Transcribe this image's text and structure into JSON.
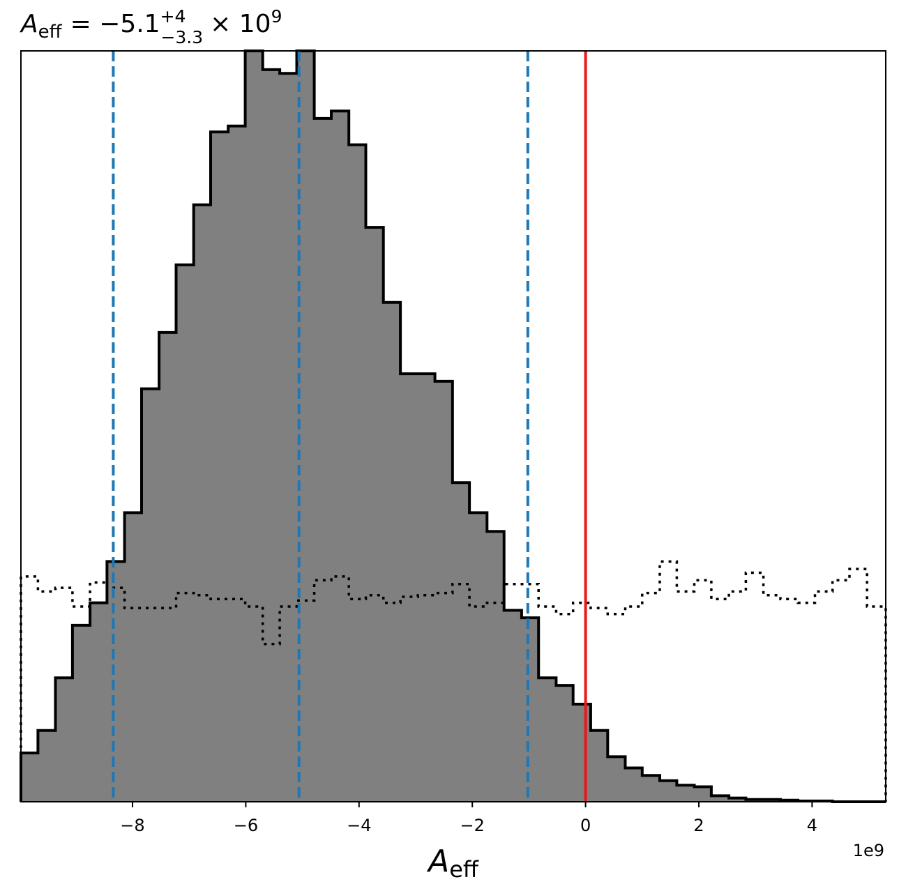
{
  "chart_data": {
    "type": "histogram",
    "title": {
      "symbol": "A",
      "symbol_sub": "eff",
      "value": "= −5.1",
      "sup": "+4",
      "sub": "−3.3",
      "times": "× 10",
      "exp": "9"
    },
    "xlabel": {
      "symbol": "A",
      "sub": "eff"
    },
    "x_offset_label": "1e9",
    "xlim": [
      -9.97,
      5.3
    ],
    "ylim": [
      0,
      1.0
    ],
    "x_ticks": [
      -8,
      -6,
      -4,
      -2,
      0,
      2,
      4
    ],
    "x_tick_labels": [
      "−8",
      "−6",
      "−4",
      "−2",
      "0",
      "2",
      "4"
    ],
    "posterior": {
      "bin_edges": [
        -9.97,
        -9.67,
        -9.36,
        -9.06,
        -8.75,
        -8.45,
        -8.14,
        -7.84,
        -7.53,
        -7.23,
        -6.92,
        -6.62,
        -6.31,
        -6.01,
        -5.7,
        -5.4,
        -5.1,
        -4.79,
        -4.49,
        -4.18,
        -3.88,
        -3.57,
        -3.27,
        -2.96,
        -2.66,
        -2.35,
        -2.05,
        -1.74,
        -1.44,
        -1.13,
        -0.83,
        -0.52,
        -0.22,
        0.09,
        0.39,
        0.7,
        1.0,
        1.31,
        1.61,
        1.92,
        2.22,
        2.53,
        2.83,
        3.14,
        3.44,
        3.75,
        4.05,
        4.36,
        4.66,
        4.97,
        5.3
      ],
      "heights": [
        0.065,
        0.095,
        0.165,
        0.235,
        0.265,
        0.32,
        0.385,
        0.55,
        0.625,
        0.715,
        0.795,
        0.892,
        0.9,
        1.0,
        0.975,
        0.97,
        1.0,
        0.91,
        0.92,
        0.875,
        0.765,
        0.665,
        0.57,
        0.57,
        0.56,
        0.425,
        0.385,
        0.36,
        0.255,
        0.245,
        0.165,
        0.155,
        0.13,
        0.095,
        0.06,
        0.045,
        0.035,
        0.028,
        0.022,
        0.02,
        0.008,
        0.005,
        0.003,
        0.003,
        0.002,
        0.001,
        0.001,
        0.0,
        0.0,
        0.0
      ],
      "fill_color": "#808080",
      "edge_color": "#000000"
    },
    "prior": {
      "bin_edges": [
        -9.97,
        -9.67,
        -9.36,
        -9.06,
        -8.75,
        -8.45,
        -8.14,
        -7.84,
        -7.53,
        -7.23,
        -6.92,
        -6.62,
        -6.31,
        -6.01,
        -5.7,
        -5.4,
        -5.1,
        -4.79,
        -4.49,
        -4.18,
        -3.88,
        -3.57,
        -3.27,
        -2.96,
        -2.66,
        -2.35,
        -2.05,
        -1.74,
        -1.44,
        -1.13,
        -0.83,
        -0.52,
        -0.22,
        0.09,
        0.39,
        0.7,
        1.0,
        1.31,
        1.61,
        1.92,
        2.22,
        2.53,
        2.83,
        3.14,
        3.44,
        3.75,
        4.05,
        4.36,
        4.66,
        4.97,
        5.3
      ],
      "heights": [
        0.3,
        0.28,
        0.285,
        0.26,
        0.292,
        0.285,
        0.258,
        0.258,
        0.258,
        0.278,
        0.275,
        0.27,
        0.27,
        0.26,
        0.21,
        0.26,
        0.268,
        0.295,
        0.3,
        0.27,
        0.275,
        0.265,
        0.273,
        0.275,
        0.278,
        0.29,
        0.26,
        0.265,
        0.29,
        0.29,
        0.26,
        0.25,
        0.265,
        0.258,
        0.25,
        0.26,
        0.278,
        0.32,
        0.28,
        0.295,
        0.27,
        0.28,
        0.305,
        0.275,
        0.27,
        0.265,
        0.28,
        0.295,
        0.31,
        0.26
      ],
      "line_color": "#000000",
      "line_style": "dotted"
    },
    "credible_lines": {
      "values": [
        -8.34,
        -5.06,
        -1.02
      ],
      "color": "#1f77b4",
      "style": "dashed"
    },
    "reference_line": {
      "value": 0.0,
      "color": "#e41a1c"
    }
  }
}
